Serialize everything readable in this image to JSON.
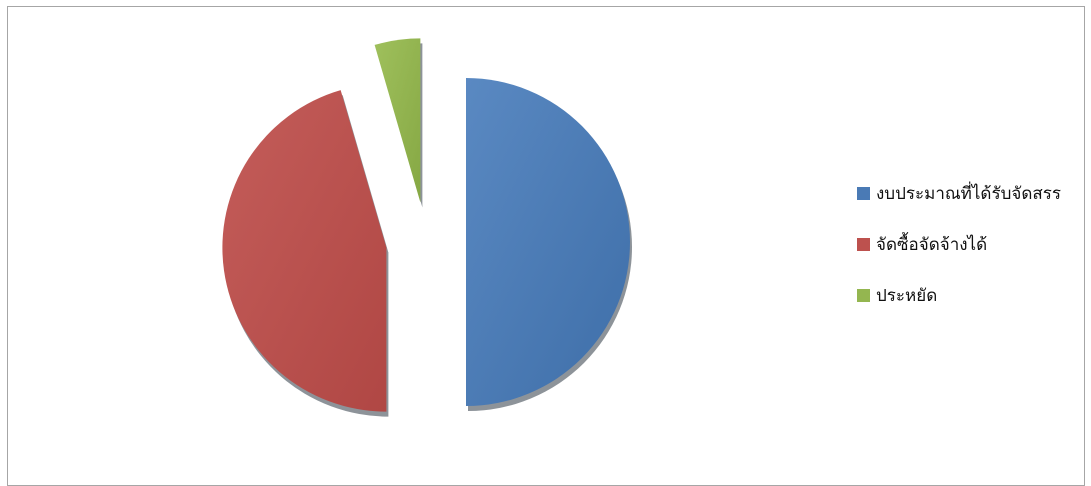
{
  "chart_data": {
    "type": "pie",
    "exploded": true,
    "slices": [
      {
        "label": "งบประมาณที่ได้รับจัดสรร",
        "value": 50.0,
        "color": "#4a7ab5"
      },
      {
        "label": "จัดซื้อจัดจ้างได้",
        "value": 45.5,
        "color": "#bd514e"
      },
      {
        "label": "ประหยัด",
        "value": 4.5,
        "color": "#94b650"
      }
    ],
    "legend_position": "right"
  }
}
